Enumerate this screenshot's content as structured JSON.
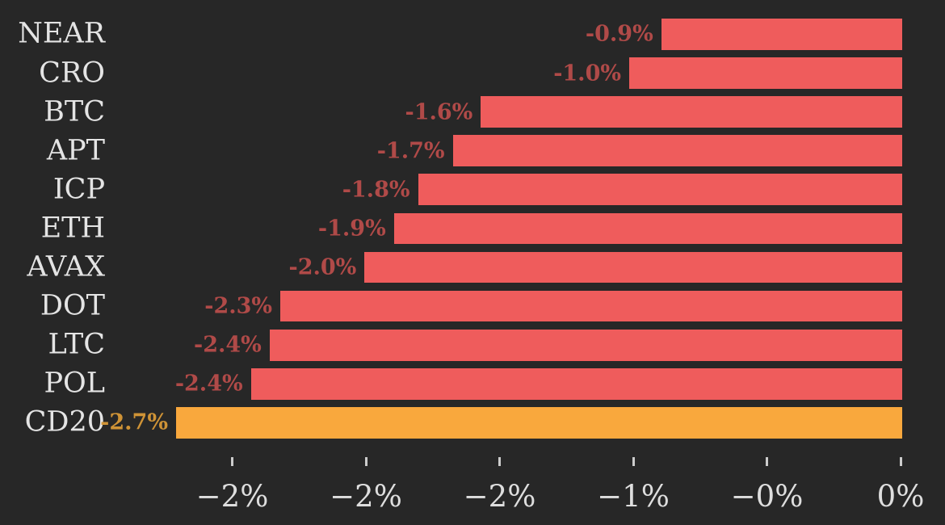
{
  "chart_data": {
    "type": "bar",
    "orientation": "horizontal",
    "title": "",
    "xlabel": "",
    "ylabel": "",
    "categories": [
      "NEAR",
      "CRO",
      "BTC",
      "APT",
      "ICP",
      "ETH",
      "AVAX",
      "DOT",
      "LTC",
      "POL",
      "CD20"
    ],
    "values": [
      -0.9,
      -1.0,
      -1.6,
      -1.7,
      -1.8,
      -1.9,
      -2.0,
      -2.3,
      -2.4,
      -2.4,
      -2.7
    ],
    "values_precise": [
      -0.895,
      -1.015,
      -1.57,
      -1.675,
      -1.805,
      -1.895,
      -2.005,
      -2.32,
      -2.36,
      -2.43,
      -2.71
    ],
    "value_labels": [
      "-0.9%",
      "-1.0%",
      "-1.6%",
      "-1.7%",
      "-1.8%",
      "-1.9%",
      "-2.0%",
      "-2.3%",
      "-2.4%",
      "-2.4%",
      "-2.7%"
    ],
    "highlight_category": "CD20",
    "xlim": [
      -2.85,
      0
    ],
    "x_ticks": [
      {
        "value": -2.5,
        "label": "−2%"
      },
      {
        "value": -2.0,
        "label": "−2%"
      },
      {
        "value": -1.5,
        "label": "−2%"
      },
      {
        "value": -1.0,
        "label": "−1%"
      },
      {
        "value": -0.5,
        "label": "−0%"
      },
      {
        "value": 0.0,
        "label": "0%"
      }
    ],
    "grid": false,
    "legend": false,
    "colors": {
      "background": "#272727",
      "bar_default": "#ef5c5c",
      "bar_highlight": "#f9a83d",
      "value_label_default": "#b04a48",
      "value_label_highlight": "#cf9336",
      "category_label": "#e4e4e4",
      "tick_label": "#dedede",
      "tick_mark": "#cccccc"
    }
  }
}
